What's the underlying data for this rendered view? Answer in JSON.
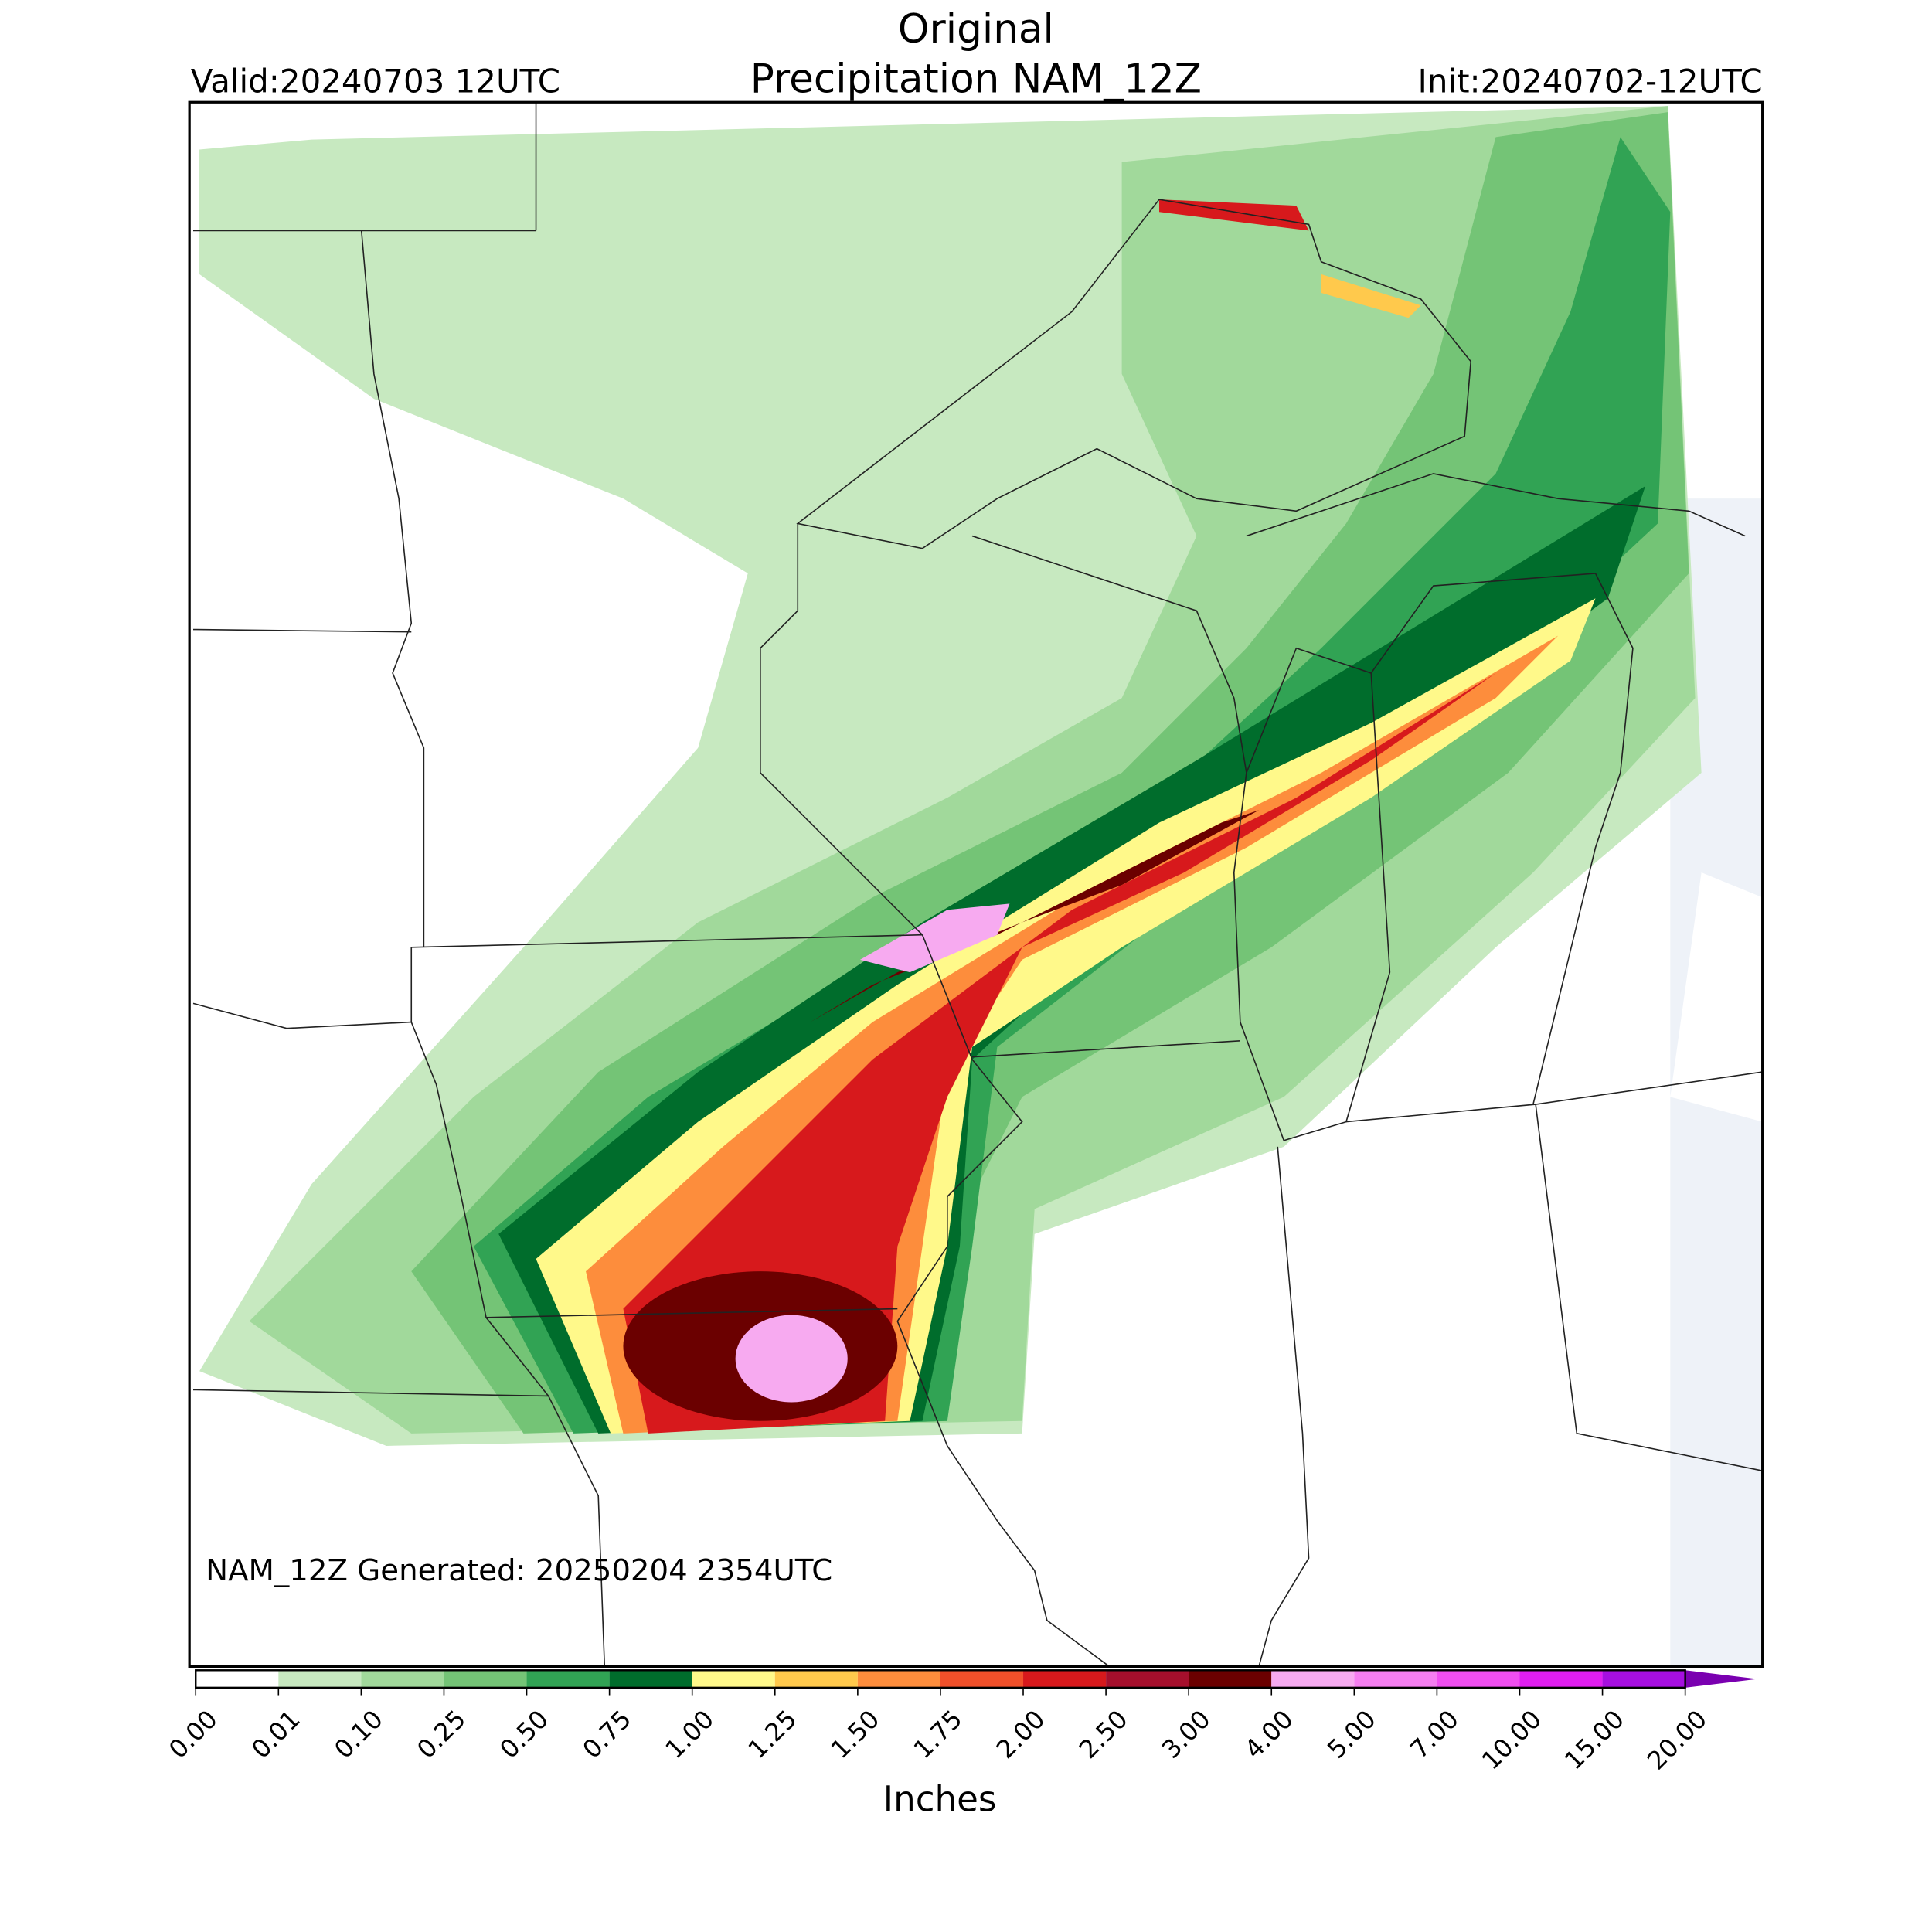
{
  "header": {
    "title": "Original",
    "subtitle": "Precipitation NAM_12Z",
    "valid": "Valid:20240703 12UTC",
    "init": "Init:20240702-12UTC"
  },
  "map": {
    "note": "NAM_12Z Generated: 20250204 2354UTC"
  },
  "colorbar": {
    "label": "Inches",
    "levels": [
      {
        "value": 0,
        "label": "0.00"
      },
      {
        "value": 0.01,
        "label": "0.01"
      },
      {
        "value": 0.1,
        "label": "0.10"
      },
      {
        "value": 0.25,
        "label": "0.25"
      },
      {
        "value": 0.5,
        "label": "0.50"
      },
      {
        "value": 0.75,
        "label": "0.75"
      },
      {
        "value": 1,
        "label": "1.00"
      },
      {
        "value": 1.25,
        "label": "1.25"
      },
      {
        "value": 1.5,
        "label": "1.50"
      },
      {
        "value": 1.75,
        "label": "1.75"
      },
      {
        "value": 2,
        "label": "2.00"
      },
      {
        "value": 2.5,
        "label": "2.50"
      },
      {
        "value": 3,
        "label": "3.00"
      },
      {
        "value": 4,
        "label": "4.00"
      },
      {
        "value": 5,
        "label": "5.00"
      },
      {
        "value": 7,
        "label": "7.00"
      },
      {
        "value": 10,
        "label": "10.00"
      },
      {
        "value": 15,
        "label": "15.00"
      },
      {
        "value": 20,
        "label": "20.00"
      }
    ],
    "colors": [
      "#ffffff",
      "#c7e9c0",
      "#a1d99b",
      "#74c476",
      "#31a354",
      "#006d2c",
      "#fff98a",
      "#ffc94c",
      "#fd8d3c",
      "#f0502a",
      "#d7191c",
      "#a50f2c",
      "#6b0000",
      "#f7aaf0",
      "#f57ef0",
      "#f04ef0",
      "#e01ef0",
      "#a60fe0"
    ],
    "extend_color": "#7a00b0"
  }
}
